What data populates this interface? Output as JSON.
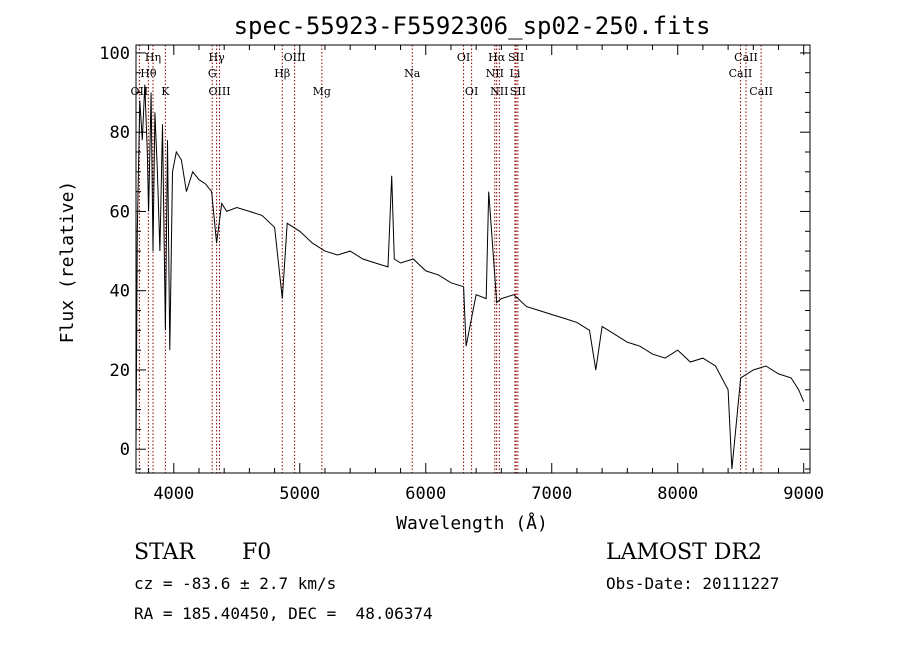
{
  "chart_data": {
    "type": "line",
    "title": "spec-55923-F5592306_sp02-250.fits",
    "xlabel": "Wavelength (Å)",
    "ylabel": "Flux (relative)",
    "xlim": [
      3700,
      9050
    ],
    "ylim": [
      -6,
      102
    ],
    "xticks": [
      4000,
      5000,
      6000,
      7000,
      8000,
      9000
    ],
    "yticks": [
      0,
      20,
      40,
      60,
      80,
      100
    ],
    "grid": false,
    "series": [
      {
        "x": [
          3700,
          3710,
          3730,
          3750,
          3770,
          3790,
          3800,
          3820,
          3835,
          3850,
          3870,
          3890,
          3910,
          3933,
          3950,
          3968,
          3990,
          4020,
          4060,
          4100,
          4150,
          4200,
          4250,
          4300,
          4340,
          4380,
          4420,
          4500,
          4600,
          4700,
          4800,
          4861,
          4900,
          5000,
          5100,
          5200,
          5300,
          5400,
          5500,
          5600,
          5700,
          5730,
          5750,
          5800,
          5900,
          6000,
          6100,
          6200,
          6300,
          6320,
          6400,
          6480,
          6500,
          6563,
          6600,
          6700,
          6800,
          6900,
          7000,
          7100,
          7200,
          7300,
          7350,
          7400,
          7500,
          7600,
          7700,
          7800,
          7900,
          8000,
          8100,
          8200,
          8300,
          8400,
          8430,
          8500,
          8600,
          8700,
          8800,
          8900,
          8960,
          9000
        ],
        "y": [
          0,
          55,
          88,
          78,
          92,
          75,
          60,
          90,
          50,
          85,
          70,
          50,
          82,
          30,
          78,
          25,
          70,
          75,
          73,
          65,
          70,
          68,
          67,
          65,
          52,
          62,
          60,
          61,
          60,
          59,
          56,
          38,
          57,
          55,
          52,
          50,
          49,
          50,
          48,
          47,
          46,
          69,
          48,
          47,
          48,
          45,
          44,
          42,
          41,
          26,
          39,
          38,
          65,
          37,
          38,
          39,
          36,
          35,
          34,
          33,
          32,
          30,
          20,
          31,
          29,
          27,
          26,
          24,
          23,
          25,
          22,
          23,
          21,
          15,
          -5,
          18,
          20,
          21,
          19,
          18,
          15,
          12
        ]
      }
    ],
    "spectral_lines": [
      {
        "label": "Hη",
        "wave": 3835,
        "row": 0
      },
      {
        "label": "Hθ",
        "wave": 3798,
        "row": 1
      },
      {
        "label": "OII",
        "wave": 3727,
        "row": 2
      },
      {
        "label": "K",
        "wave": 3933,
        "row": 2
      },
      {
        "label": "Hγ",
        "wave": 4340,
        "row": 0
      },
      {
        "label": "G",
        "wave": 4305,
        "row": 1
      },
      {
        "label": "OIII",
        "wave": 4363,
        "row": 2
      },
      {
        "label": "OIII",
        "wave": 4959,
        "row": 0
      },
      {
        "label": "Hβ",
        "wave": 4861,
        "row": 1
      },
      {
        "label": "Mg",
        "wave": 5175,
        "row": 2
      },
      {
        "label": "Na",
        "wave": 5893,
        "row": 1
      },
      {
        "label": "OI",
        "wave": 6300,
        "row": 0
      },
      {
        "label": "OI",
        "wave": 6364,
        "row": 2
      },
      {
        "label": "Hα",
        "wave": 6563,
        "row": 0
      },
      {
        "label": "NII",
        "wave": 6548,
        "row": 1
      },
      {
        "label": "NII",
        "wave": 6584,
        "row": 2
      },
      {
        "label": "SII",
        "wave": 6717,
        "row": 0
      },
      {
        "label": "Li",
        "wave": 6708,
        "row": 1
      },
      {
        "label": "SII",
        "wave": 6731,
        "row": 2
      },
      {
        "label": "CaII",
        "wave": 8542,
        "row": 0
      },
      {
        "label": "CaII",
        "wave": 8498,
        "row": 1
      },
      {
        "label": "CaII",
        "wave": 8662,
        "row": 2
      }
    ],
    "colors": {
      "spectrum": "#000000",
      "line_markers": "#8b0000"
    }
  },
  "info": {
    "class_label": "STAR",
    "subclass": "F0",
    "survey": "LAMOST DR2",
    "cz": "cz = -83.6 ± 2.7 km/s",
    "obs_date": "Obs-Date: 20111227",
    "coords": "RA = 185.40450, DEC =  48.06374"
  }
}
